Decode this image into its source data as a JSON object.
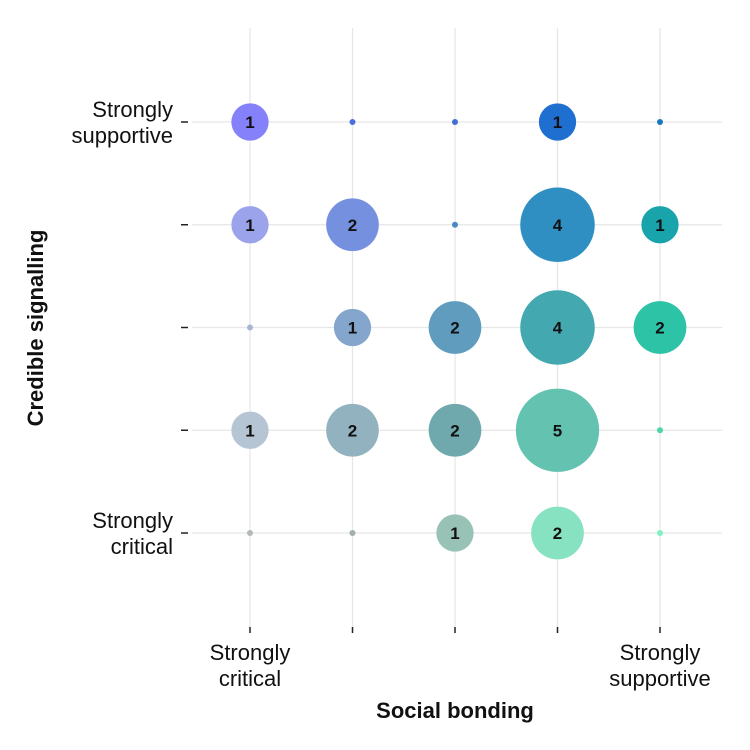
{
  "chart_data": {
    "type": "scatter",
    "xlabel": "Social bonding",
    "ylabel": "Credible signalling",
    "x_levels": [
      1,
      2,
      3,
      4,
      5
    ],
    "y_levels": [
      1,
      2,
      3,
      4,
      5
    ],
    "x_tick_labels": [
      [
        "Strongly",
        "critical"
      ],
      [],
      [],
      [],
      [
        "Strongly",
        "supportive"
      ]
    ],
    "y_tick_labels": [
      [
        "Strongly",
        "critical"
      ],
      [],
      [],
      [],
      [
        "Strongly",
        "supportive"
      ]
    ],
    "grid": true,
    "points": [
      {
        "x": 1,
        "y": 5,
        "count": 1,
        "color": "#8581fb"
      },
      {
        "x": 2,
        "y": 5,
        "count": 0,
        "color": "#4c6fe0"
      },
      {
        "x": 3,
        "y": 5,
        "count": 0,
        "color": "#3f6fd4"
      },
      {
        "x": 4,
        "y": 5,
        "count": 1,
        "color": "#1f6fd0"
      },
      {
        "x": 5,
        "y": 5,
        "count": 0,
        "color": "#1978bf"
      },
      {
        "x": 1,
        "y": 4,
        "count": 1,
        "color": "#9ba3ea"
      },
      {
        "x": 2,
        "y": 4,
        "count": 2,
        "color": "#7690e0"
      },
      {
        "x": 3,
        "y": 4,
        "count": 0,
        "color": "#4d86c4"
      },
      {
        "x": 4,
        "y": 4,
        "count": 4,
        "color": "#2f8fc3"
      },
      {
        "x": 5,
        "y": 4,
        "count": 1,
        "color": "#19a3ab"
      },
      {
        "x": 1,
        "y": 3,
        "count": 0,
        "color": "#a9b5d6"
      },
      {
        "x": 2,
        "y": 3,
        "count": 1,
        "color": "#84a5cc"
      },
      {
        "x": 3,
        "y": 3,
        "count": 2,
        "color": "#5f9cbe"
      },
      {
        "x": 4,
        "y": 3,
        "count": 4,
        "color": "#44a8b1"
      },
      {
        "x": 5,
        "y": 3,
        "count": 2,
        "color": "#2dc3a7"
      },
      {
        "x": 1,
        "y": 2,
        "count": 1,
        "color": "#b6c5d3"
      },
      {
        "x": 2,
        "y": 2,
        "count": 2,
        "color": "#93b2c0"
      },
      {
        "x": 3,
        "y": 2,
        "count": 2,
        "color": "#6fa9ad"
      },
      {
        "x": 4,
        "y": 2,
        "count": 5,
        "color": "#63c2b0"
      },
      {
        "x": 5,
        "y": 2,
        "count": 0,
        "color": "#4fd6a5"
      },
      {
        "x": 1,
        "y": 1,
        "count": 0,
        "color": "#b3b8b8"
      },
      {
        "x": 2,
        "y": 1,
        "count": 0,
        "color": "#a0aeac"
      },
      {
        "x": 3,
        "y": 1,
        "count": 1,
        "color": "#98c2b6"
      },
      {
        "x": 4,
        "y": 1,
        "count": 2,
        "color": "#86e2c0"
      },
      {
        "x": 5,
        "y": 1,
        "count": 0,
        "color": "#7ff2c2"
      }
    ]
  }
}
